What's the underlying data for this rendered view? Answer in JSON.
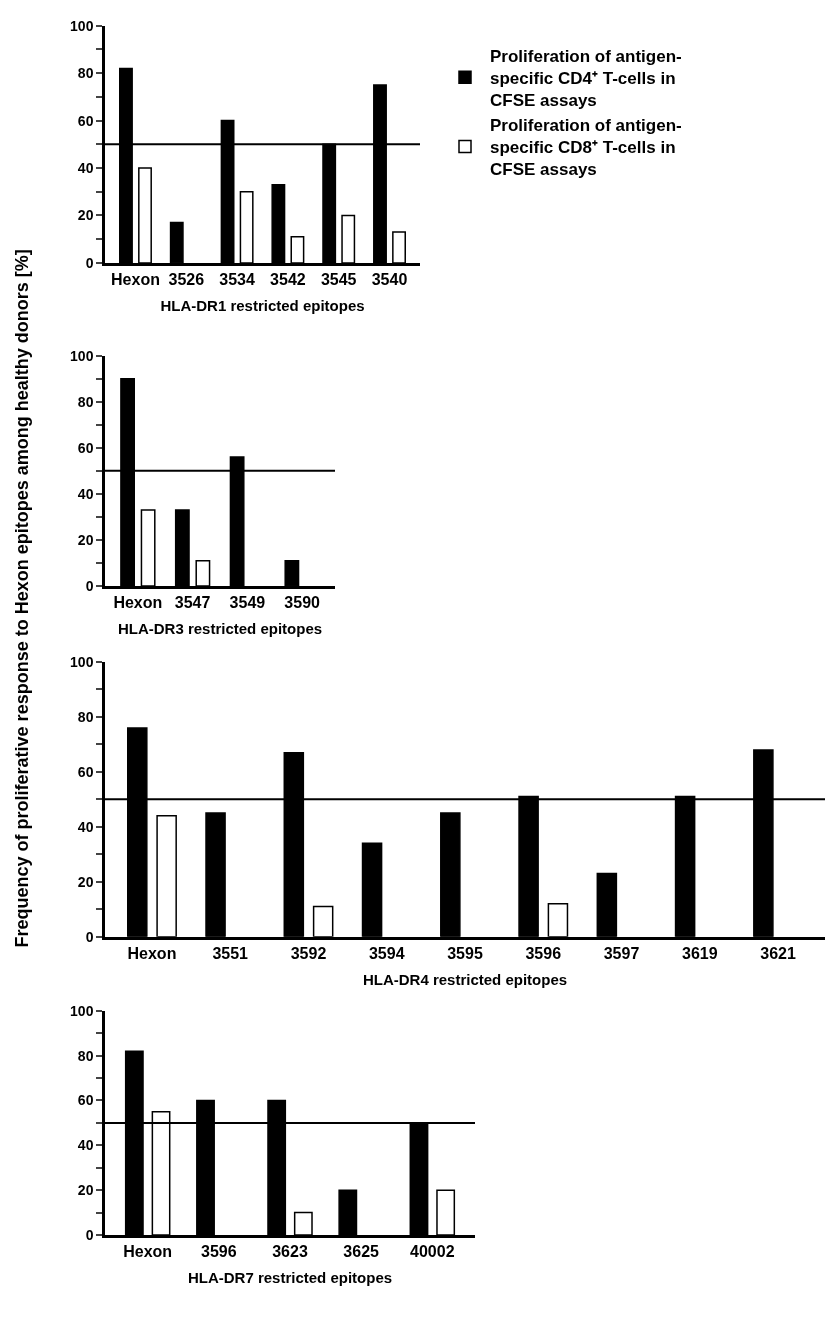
{
  "chart_data": [
    {
      "type": "bar",
      "xlabel": "HLA-DR1 restricted epitopes",
      "ylabel": "Frequency of proliferative response to Hexon epitopes among healthy donors [%]",
      "categories": [
        "Hexon",
        "3526",
        "3534",
        "3542",
        "3545",
        "3540"
      ],
      "series": [
        {
          "name": "Proliferation of antigen-specific CD4⁺ T-cells in CFSE assays",
          "color": "#000000",
          "values": [
            82,
            17,
            60,
            33,
            50,
            75
          ]
        },
        {
          "name": "Proliferation of antigen-specific CD8⁺ T-cells in CFSE assays",
          "color": "#ffffff",
          "values": [
            40,
            0,
            30,
            11,
            20,
            13
          ]
        }
      ],
      "ylim": [
        0,
        100
      ],
      "yticks": [
        0,
        {
          "value": 10,
          "label": null
        },
        20,
        {
          "value": 30,
          "label": null
        },
        40,
        {
          "value": 50,
          "label": null
        },
        60,
        {
          "value": 70,
          "label": null
        },
        80,
        {
          "value": 90,
          "label": null
        },
        100
      ],
      "ref_lines": [
        {
          "axis": "y",
          "value": 50,
          "color": "#000000"
        }
      ],
      "legend": "right"
    },
    {
      "type": "bar",
      "xlabel": "HLA-DR3 restricted epitopes",
      "categories": [
        "Hexon",
        "3547",
        "3549",
        "3590"
      ],
      "series": [
        {
          "color": "#000000",
          "values": [
            90,
            33,
            56,
            11
          ]
        },
        {
          "color": "#ffffff",
          "values": [
            33,
            11,
            0,
            0
          ]
        }
      ],
      "ylim": [
        0,
        100
      ],
      "yticks": [
        0,
        {
          "value": 10,
          "label": null
        },
        20,
        {
          "value": 30,
          "label": null
        },
        40,
        {
          "value": 50,
          "label": null
        },
        60,
        {
          "value": 70,
          "label": null
        },
        80,
        {
          "value": 90,
          "label": null
        },
        100
      ],
      "ref_lines": [
        {
          "axis": "y",
          "value": 50,
          "color": "#000000"
        }
      ]
    },
    {
      "type": "bar",
      "xlabel": "HLA-DR4 restricted epitopes",
      "categories": [
        "Hexon",
        "3551",
        "3592",
        "3594",
        "3595",
        "3596",
        "3597",
        "3619",
        "3621"
      ],
      "series": [
        {
          "color": "#000000",
          "values": [
            76,
            45,
            67,
            34,
            45,
            51,
            23,
            51,
            68
          ]
        },
        {
          "color": "#ffffff",
          "values": [
            44,
            0,
            11,
            0,
            0,
            12,
            0,
            0,
            0
          ]
        }
      ],
      "ylim": [
        0,
        100
      ],
      "yticks": [
        0,
        {
          "value": 10,
          "label": null
        },
        20,
        {
          "value": 30,
          "label": null
        },
        40,
        {
          "value": 50,
          "label": null
        },
        60,
        {
          "value": 70,
          "label": null
        },
        80,
        {
          "value": 90,
          "label": null
        },
        100
      ],
      "ref_lines": [
        {
          "axis": "y",
          "value": 50,
          "color": "#000000"
        }
      ]
    },
    {
      "type": "bar",
      "xlabel": "HLA-DR7 restricted epitopes",
      "categories": [
        "Hexon",
        "3596",
        "3623",
        "3625",
        "40002"
      ],
      "series": [
        {
          "color": "#000000",
          "values": [
            82,
            60,
            60,
            20,
            50
          ]
        },
        {
          "color": "#ffffff",
          "values": [
            55,
            0,
            10,
            0,
            20
          ]
        }
      ],
      "ylim": [
        0,
        100
      ],
      "yticks": [
        0,
        {
          "value": 10,
          "label": null
        },
        20,
        {
          "value": 30,
          "label": null
        },
        40,
        {
          "value": 50,
          "label": null
        },
        60,
        {
          "value": 70,
          "label": null
        },
        80,
        {
          "value": 90,
          "label": null
        },
        100
      ],
      "ref_lines": [
        {
          "axis": "y",
          "value": 50,
          "color": "#000000"
        }
      ]
    }
  ]
}
